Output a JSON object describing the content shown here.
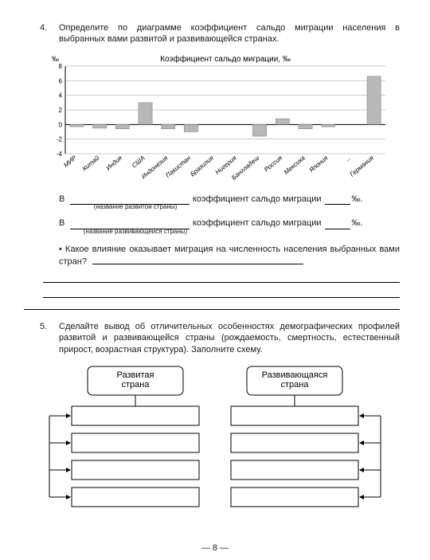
{
  "task4": {
    "number": "4.",
    "prompt": "Определите по диаграмме коэффициент сальдо миграции населения в выбранных вами развитой и развивающейся странах.",
    "chart": {
      "title": "Коэффициент сальдо миграции, ‰",
      "y_unit": "‰",
      "y_ticks": [
        -4,
        -2,
        0,
        2,
        4,
        6,
        8
      ],
      "ymin": -4,
      "ymax": 8,
      "categories": [
        "МИР",
        "Китай",
        "Индия",
        "США",
        "Индонезия",
        "Пакистан",
        "Бразилия",
        "Нигерия",
        "Бангладеш",
        "Россия",
        "Мексика",
        "Япония",
        "...",
        "Германия"
      ],
      "values": [
        -0.3,
        -0.5,
        -0.6,
        3.0,
        -0.6,
        -1.0,
        0.0,
        0.0,
        -1.6,
        0.8,
        -0.6,
        -0.3,
        0.0,
        6.6
      ],
      "bar_color": "#b8b8b8",
      "grid_color": "#9a9a9a",
      "axis_color": "#000000",
      "label_fontsize": 8,
      "tick_fontsize": 8,
      "bar_width_ratio": 0.6
    },
    "blank_prefix": "В",
    "blank_mid": "коэффициент сальдо миграции",
    "blank_suffix": "‰.",
    "sub1": "(название развитой страны)",
    "sub2": "(название развивающейся страны)",
    "bullet": "• Какое влияние оказывает миграция на численность населения выбранных вами стран?"
  },
  "task5": {
    "number": "5.",
    "prompt": "Сделайте вывод об отличительных особенностях демографических профилей развитой и развивающейся страны (рождаемость, смертность, естественный прирост, возрастная структура). Заполните схему.",
    "left_header": "Развитая\nстрана",
    "right_header": "Развивающаяся\nстрана",
    "box_border": "#000000",
    "arrow_color": "#000000"
  },
  "page_number": "— 8 —"
}
